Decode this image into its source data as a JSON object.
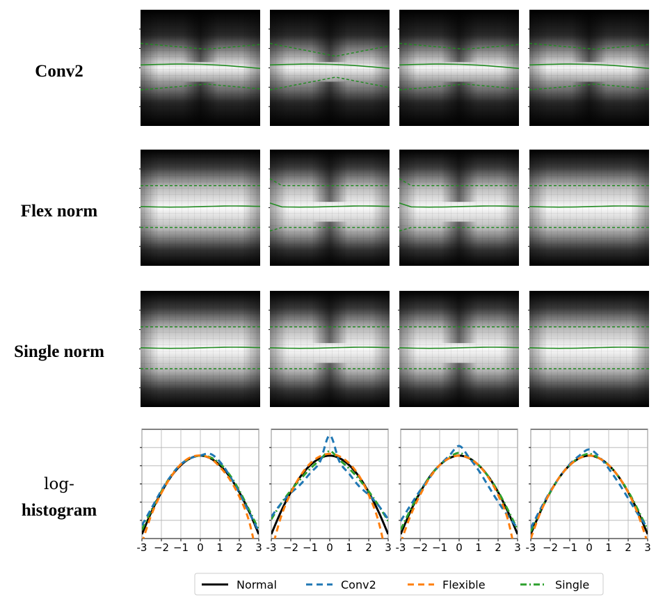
{
  "row_labels": {
    "conv2": "Conv2",
    "flex": "Flex norm",
    "single": "Single norm",
    "hist_line1": "log-",
    "hist_line2": "histogram"
  },
  "colors": {
    "normal": "#000000",
    "conv2": "#1f77b4",
    "flexible": "#ff7f0e",
    "single": "#2ca02c",
    "heatmap_line": "#228b22",
    "grid": "#b0b0b0"
  },
  "chart_data": [
    {
      "type": "heatmap",
      "grid_rows": [
        "Conv2",
        "Flex norm",
        "Single norm"
      ],
      "columns": 4,
      "overlay_lines": [
        "median (solid)",
        "quantile bands (dashed)"
      ],
      "line_color": "green"
    },
    {
      "type": "line",
      "x_ticks": [
        "-3",
        "−2",
        "−1",
        "0",
        "1",
        "2",
        "3"
      ],
      "xlim": [
        -3,
        3
      ],
      "grid": true,
      "legend_position": "bottom",
      "series": [
        {
          "name": "Normal",
          "style": "solid",
          "color": "#000000"
        },
        {
          "name": "Conv2",
          "style": "dashed",
          "color": "#1f77b4"
        },
        {
          "name": "Flexible",
          "style": "dashed",
          "color": "#ff7f0e"
        },
        {
          "name": "Single",
          "style": "dashdot",
          "color": "#2ca02c"
        }
      ],
      "x": [
        -3,
        -2.5,
        -2,
        -1.5,
        -1,
        -0.5,
        0,
        0.5,
        1,
        1.5,
        2,
        2.5,
        3
      ],
      "panels": [
        {
          "Normal": [
            0.05,
            0.31,
            0.53,
            0.71,
            0.84,
            0.92,
            0.95,
            0.92,
            0.84,
            0.71,
            0.53,
            0.31,
            0.05
          ],
          "Conv2": [
            0.15,
            0.35,
            0.55,
            0.72,
            0.85,
            0.92,
            0.95,
            0.97,
            0.88,
            0.72,
            0.52,
            0.3,
            0.08
          ],
          "Flexible": [
            -0.05,
            0.28,
            0.52,
            0.71,
            0.85,
            0.93,
            0.95,
            0.92,
            0.82,
            0.68,
            0.48,
            0.2,
            -0.3
          ],
          "Single": [
            0.1,
            0.33,
            0.54,
            0.72,
            0.85,
            0.92,
            0.95,
            0.93,
            0.86,
            0.73,
            0.55,
            0.33,
            0.1
          ]
        },
        {
          "Normal": [
            0.05,
            0.31,
            0.53,
            0.71,
            0.84,
            0.92,
            0.95,
            0.92,
            0.84,
            0.71,
            0.53,
            0.31,
            0.05
          ],
          "Conv2": [
            0.25,
            0.4,
            0.52,
            0.62,
            0.75,
            0.88,
            1.18,
            0.88,
            0.74,
            0.6,
            0.5,
            0.38,
            0.22
          ],
          "Flexible": [
            -0.15,
            0.25,
            0.52,
            0.72,
            0.86,
            0.94,
            0.97,
            0.94,
            0.86,
            0.72,
            0.5,
            0.2,
            -0.3
          ],
          "Single": [
            0.22,
            0.4,
            0.55,
            0.68,
            0.8,
            0.9,
            1.0,
            0.9,
            0.8,
            0.68,
            0.54,
            0.38,
            0.2
          ]
        },
        {
          "Normal": [
            0.05,
            0.31,
            0.53,
            0.71,
            0.84,
            0.92,
            0.95,
            0.92,
            0.84,
            0.71,
            0.53,
            0.31,
            0.05
          ],
          "Conv2": [
            0.2,
            0.38,
            0.55,
            0.7,
            0.84,
            0.95,
            1.06,
            0.93,
            0.78,
            0.6,
            0.42,
            0.26,
            0.12
          ],
          "Flexible": [
            -0.05,
            0.26,
            0.5,
            0.7,
            0.84,
            0.92,
            0.95,
            0.92,
            0.84,
            0.7,
            0.5,
            0.22,
            -0.3
          ],
          "Single": [
            0.1,
            0.33,
            0.54,
            0.71,
            0.84,
            0.93,
            0.98,
            0.92,
            0.84,
            0.71,
            0.54,
            0.33,
            0.1
          ]
        },
        {
          "Normal": [
            0.05,
            0.31,
            0.53,
            0.71,
            0.84,
            0.92,
            0.95,
            0.92,
            0.84,
            0.71,
            0.53,
            0.31,
            0.05
          ],
          "Conv2": [
            0.12,
            0.34,
            0.54,
            0.71,
            0.85,
            0.95,
            1.02,
            0.94,
            0.8,
            0.64,
            0.46,
            0.28,
            0.12
          ],
          "Flexible": [
            0.0,
            0.3,
            0.53,
            0.71,
            0.84,
            0.92,
            0.95,
            0.92,
            0.84,
            0.71,
            0.53,
            0.28,
            -0.05
          ],
          "Single": [
            0.08,
            0.32,
            0.53,
            0.71,
            0.84,
            0.93,
            0.97,
            0.92,
            0.84,
            0.71,
            0.54,
            0.33,
            0.1
          ]
        }
      ]
    }
  ],
  "legend": [
    "Normal",
    "Conv2",
    "Flexible",
    "Single"
  ]
}
